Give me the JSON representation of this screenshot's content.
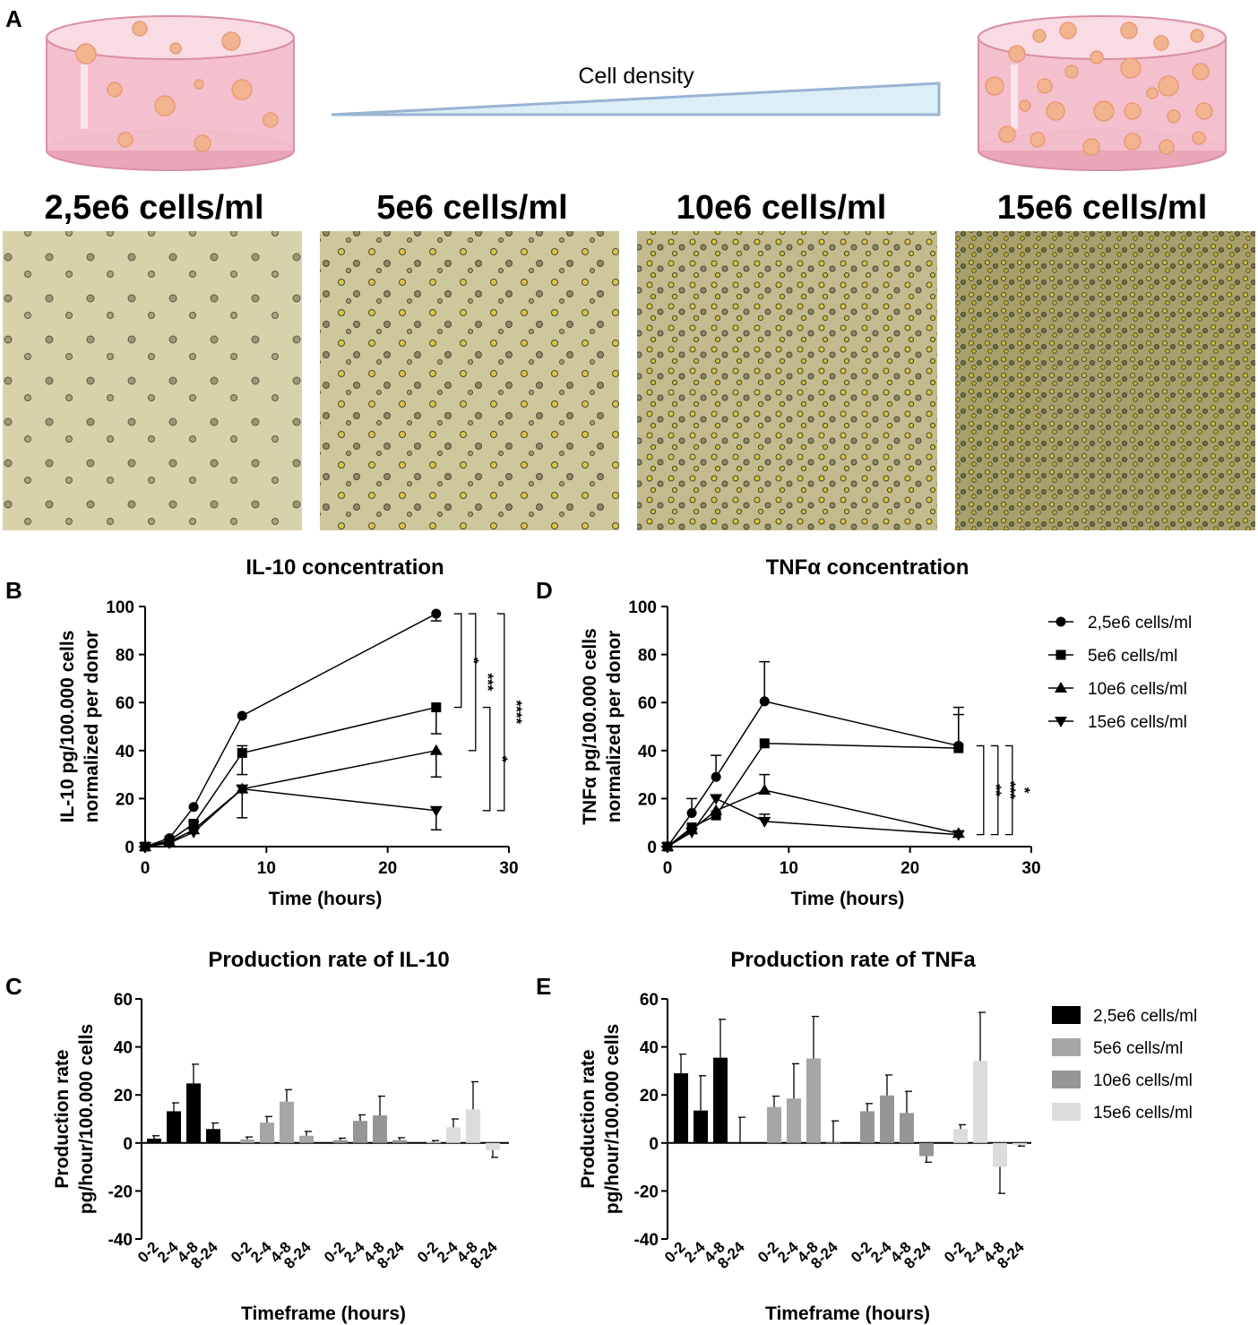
{
  "panel_letters": {
    "a": "A",
    "b": "B",
    "c": "C",
    "d": "D",
    "e": "E"
  },
  "header": {
    "density_label": "Cell density"
  },
  "density_labels": [
    "2,5e6 cells/ml",
    "5e6 cells/ml",
    "10e6 cells/ml",
    "15e6 cells/ml"
  ],
  "legend_labels": [
    "2,5e6 cells/ml",
    "5e6 cells/ml",
    "10e6 cells/ml",
    "15e6 cells/ml"
  ],
  "colors": {
    "dish_pink": "#f4c2cf",
    "cell_peach": "#f2b48f",
    "triangle_fill": "#dceef8",
    "triangle_stroke": "#9ab3d3",
    "micro_bg": "#cfc79a",
    "bar_series": [
      "#000000",
      "#a6a6a6",
      "#969696",
      "#dcdcdc"
    ]
  },
  "chart_data": [
    {
      "id": "B",
      "type": "line",
      "title": "IL-10 concentration",
      "xlabel": "Time (hours)",
      "ylabel": [
        "IL-10 pg/100.000 cells",
        "normalized per donor"
      ],
      "xlim": [
        0,
        30
      ],
      "ylim": [
        0,
        100
      ],
      "xticks": [
        0,
        10,
        20,
        30
      ],
      "yticks": [
        0,
        20,
        40,
        60,
        80,
        100
      ],
      "x": [
        0,
        2,
        4,
        8,
        24
      ],
      "series": [
        {
          "name": "2,5e6 cells/ml",
          "marker": "circle",
          "values": [
            0,
            3.5,
            16.5,
            54.5,
            97
          ],
          "err_up": [
            0,
            0,
            0,
            0,
            0
          ],
          "err_down": [
            0,
            0,
            0,
            0,
            3
          ]
        },
        {
          "name": "5e6 cells/ml",
          "marker": "square",
          "values": [
            0,
            2.5,
            9.5,
            39,
            58
          ],
          "err_up": [
            0,
            0,
            1,
            3,
            0
          ],
          "err_down": [
            0,
            0,
            0,
            9,
            11
          ]
        },
        {
          "name": "10e6 cells/ml",
          "marker": "triangle-up",
          "values": [
            0,
            2,
            7,
            24,
            40
          ],
          "err_up": [
            0,
            0,
            0,
            0,
            0
          ],
          "err_down": [
            0,
            0,
            0,
            0,
            11
          ]
        },
        {
          "name": "15e6 cells/ml",
          "marker": "triangle-down",
          "values": [
            0,
            1.5,
            6,
            24,
            15
          ],
          "err_up": [
            0,
            0,
            0,
            0,
            0
          ],
          "err_down": [
            0,
            0,
            0,
            12,
            8
          ]
        }
      ],
      "significance": [
        {
          "from": 97,
          "to": 58,
          "label": "*"
        },
        {
          "from": 97,
          "to": 40,
          "label": "***"
        },
        {
          "from": 58,
          "to": 15,
          "label": "*"
        },
        {
          "from": 97,
          "to": 15,
          "label": "****"
        }
      ]
    },
    {
      "id": "D",
      "type": "line",
      "title": "TNFα concentration",
      "xlabel": "Time (hours)",
      "ylabel": [
        "TNFα pg/100.000 cells",
        "normalized per donor"
      ],
      "xlim": [
        0,
        30
      ],
      "ylim": [
        0,
        100
      ],
      "xticks": [
        0,
        10,
        20,
        30
      ],
      "yticks": [
        0,
        20,
        40,
        60,
        80,
        100
      ],
      "x": [
        0,
        2,
        4,
        8,
        24
      ],
      "series": [
        {
          "name": "2,5e6 cells/ml",
          "marker": "circle",
          "values": [
            0,
            14,
            29,
            60.5,
            42
          ],
          "err_up": [
            0,
            6,
            9,
            16.5,
            16
          ],
          "err_down": [
            0,
            0,
            0,
            0,
            0
          ]
        },
        {
          "name": "5e6 cells/ml",
          "marker": "square",
          "values": [
            0,
            8,
            13,
            43,
            41
          ],
          "err_up": [
            0,
            0,
            0,
            0,
            14
          ],
          "err_down": [
            0,
            0,
            0,
            0,
            0
          ]
        },
        {
          "name": "10e6 cells/ml",
          "marker": "triangle-up",
          "values": [
            0,
            7,
            15,
            23.5,
            5.5
          ],
          "err_up": [
            0,
            0,
            0,
            6.5,
            0
          ],
          "err_down": [
            0,
            0,
            0,
            0,
            0
          ]
        },
        {
          "name": "15e6 cells/ml",
          "marker": "triangle-down",
          "values": [
            0,
            6,
            20,
            10.5,
            5
          ],
          "err_up": [
            0,
            0,
            0,
            3,
            0
          ],
          "err_down": [
            0,
            0,
            0,
            0,
            0
          ]
        }
      ],
      "significance": [
        {
          "from": 42,
          "to": 5,
          "label": "**"
        },
        {
          "from": 42,
          "to": 5,
          "label": "***"
        },
        {
          "from": 42,
          "to": 5,
          "label": "*"
        }
      ]
    },
    {
      "id": "C",
      "type": "bar",
      "title": "Production rate of IL-10",
      "xlabel": "Timeframe (hours)",
      "ylabel": [
        "Production rate",
        "pg/hour/100.000 cells"
      ],
      "ylim": [
        -40,
        60
      ],
      "yticks": [
        -40,
        -20,
        0,
        20,
        40,
        60
      ],
      "categories": [
        "0-2",
        "2-4",
        "4-8",
        "8-24"
      ],
      "series": [
        {
          "name": "2,5e6 cells/ml",
          "values": [
            1.8,
            13.2,
            24.8,
            5.8
          ],
          "err": [
            1.2,
            3.5,
            8,
            2.5
          ]
        },
        {
          "name": "5e6 cells/ml",
          "values": [
            1.5,
            8.5,
            17.2,
            3
          ],
          "err": [
            1,
            2.5,
            5,
            1.8
          ]
        },
        {
          "name": "10e6 cells/ml",
          "values": [
            1.2,
            9.2,
            11.5,
            1.2
          ],
          "err": [
            0.8,
            2.5,
            8,
            1
          ]
        },
        {
          "name": "15e6 cells/ml",
          "values": [
            0.4,
            6.5,
            14,
            -3
          ],
          "err": [
            0.6,
            3.5,
            11.5,
            3
          ]
        }
      ]
    },
    {
      "id": "E",
      "type": "bar",
      "title": "Production rate of TNFa",
      "xlabel": "Timeframe (hours)",
      "ylabel": [
        "Production rate",
        "pg/hour/100.000 cells"
      ],
      "ylim": [
        -40,
        60
      ],
      "yticks": [
        -40,
        -20,
        0,
        20,
        40,
        60
      ],
      "categories": [
        "0-2",
        "2-4",
        "4-8",
        "8-24"
      ],
      "series": [
        {
          "name": "2,5e6 cells/ml",
          "values": [
            29,
            13.5,
            35.5,
            0.2
          ],
          "err": [
            8,
            14.5,
            16,
            10.5
          ]
        },
        {
          "name": "5e6 cells/ml",
          "values": [
            15,
            18.5,
            35.2,
            0.2
          ],
          "err": [
            4.5,
            14.5,
            17.5,
            9
          ]
        },
        {
          "name": "10e6 cells/ml",
          "values": [
            13.2,
            19.8,
            12.5,
            -5.5
          ],
          "err": [
            3.2,
            8.5,
            9,
            2.5
          ]
        },
        {
          "name": "15e6 cells/ml",
          "values": [
            5.8,
            34.2,
            -10,
            -0.8
          ],
          "err": [
            1.8,
            20.2,
            11,
            0.5
          ]
        }
      ]
    }
  ]
}
